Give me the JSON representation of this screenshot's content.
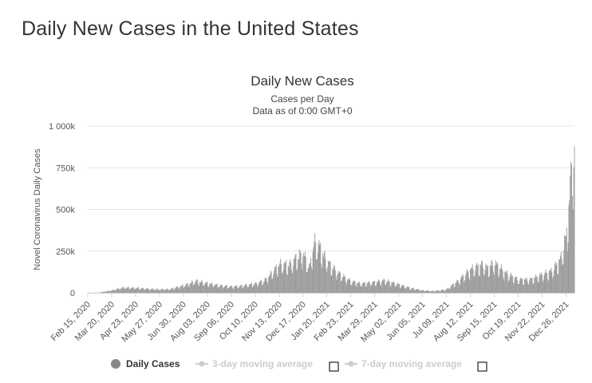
{
  "page": {
    "title": "Daily New Cases in the United States"
  },
  "chart_data": {
    "type": "bar",
    "title": "Daily New Cases",
    "subtitle": "Cases per Day",
    "subtitle2": "Data as of 0:00 GMT+0",
    "ylabel": "Novel Coronavirus Daily Cases",
    "xlabel": "",
    "ylim": [
      0,
      1000000
    ],
    "yticks": [
      {
        "value": 0,
        "label": "0"
      },
      {
        "value": 250000,
        "label": "250k"
      },
      {
        "value": 500000,
        "label": "500k"
      },
      {
        "value": 750000,
        "label": "750k"
      },
      {
        "value": 1000000,
        "label": "1 000k"
      }
    ],
    "xticks": [
      "Feb 15, 2020",
      "Mar 20, 2020",
      "Apr 23, 2020",
      "May 27, 2020",
      "Jun 30, 2020",
      "Aug 03, 2020",
      "Sep 06, 2020",
      "Oct 10, 2020",
      "Nov 13, 2020",
      "Dec 17, 2020",
      "Jan 20, 2021",
      "Feb 23, 2021",
      "Mar 29, 2021",
      "May 02, 2021",
      "Jun 05, 2021",
      "Jul 09, 2021",
      "Aug 12, 2021",
      "Sep 15, 2021",
      "Oct 19, 2021",
      "Nov 22, 2021",
      "Dec 26, 2021"
    ],
    "x_start": "Feb 15, 2020",
    "x_end": "Jan 07, 2022",
    "grid": true,
    "bar_color": "#999999",
    "series": [
      {
        "name": "Daily Cases",
        "approx_points": [
          [
            "Feb 15, 2020",
            0
          ],
          [
            "Mar 01, 2020",
            500
          ],
          [
            "Mar 20, 2020",
            15000
          ],
          [
            "Apr 05, 2020",
            32000
          ],
          [
            "Apr 23, 2020",
            30000
          ],
          [
            "May 10, 2020",
            25000
          ],
          [
            "May 27, 2020",
            21000
          ],
          [
            "Jun 10, 2020",
            22000
          ],
          [
            "Jun 30, 2020",
            45000
          ],
          [
            "Jul 18, 2020",
            72000
          ],
          [
            "Aug 03, 2020",
            58000
          ],
          [
            "Aug 20, 2020",
            45000
          ],
          [
            "Sep 06, 2020",
            38000
          ],
          [
            "Sep 20, 2020",
            42000
          ],
          [
            "Oct 10, 2020",
            55000
          ],
          [
            "Oct 25, 2020",
            80000
          ],
          [
            "Nov 13, 2020",
            170000
          ],
          [
            "Nov 28, 2020",
            170000
          ],
          [
            "Dec 10, 2020",
            220000
          ],
          [
            "Dec 17, 2020",
            240000
          ],
          [
            "Dec 26, 2020",
            150000
          ],
          [
            "Jan 02, 2021",
            300000
          ],
          [
            "Jan 08, 2021",
            290000
          ],
          [
            "Jan 20, 2021",
            190000
          ],
          [
            "Feb 05, 2021",
            120000
          ],
          [
            "Feb 23, 2021",
            70000
          ],
          [
            "Mar 10, 2021",
            55000
          ],
          [
            "Mar 29, 2021",
            65000
          ],
          [
            "Apr 12, 2021",
            75000
          ],
          [
            "May 02, 2021",
            50000
          ],
          [
            "May 20, 2021",
            28000
          ],
          [
            "Jun 05, 2021",
            15000
          ],
          [
            "Jun 20, 2021",
            11000
          ],
          [
            "Jul 09, 2021",
            20000
          ],
          [
            "Jul 25, 2021",
            70000
          ],
          [
            "Aug 12, 2021",
            140000
          ],
          [
            "Aug 28, 2021",
            170000
          ],
          [
            "Sep 05, 2021",
            150000
          ],
          [
            "Sep 15, 2021",
            180000
          ],
          [
            "Oct 01, 2021",
            120000
          ],
          [
            "Oct 19, 2021",
            80000
          ],
          [
            "Nov 05, 2021",
            80000
          ],
          [
            "Nov 22, 2021",
            110000
          ],
          [
            "Dec 05, 2021",
            130000
          ],
          [
            "Dec 18, 2021",
            200000
          ],
          [
            "Dec 26, 2021",
            330000
          ],
          [
            "Jan 01, 2022",
            600000
          ],
          [
            "Jan 03, 2022",
            860000
          ],
          [
            "Jan 07, 2022",
            760000
          ]
        ]
      }
    ],
    "legend": {
      "placement": "bottom",
      "items": [
        {
          "label": "Daily Cases",
          "active": true,
          "color": "#888888"
        },
        {
          "label": "3-day moving average",
          "active": false,
          "color": "#cccccc"
        },
        {
          "label": "7-day moving average",
          "active": false,
          "color": "#cccccc"
        }
      ]
    }
  }
}
